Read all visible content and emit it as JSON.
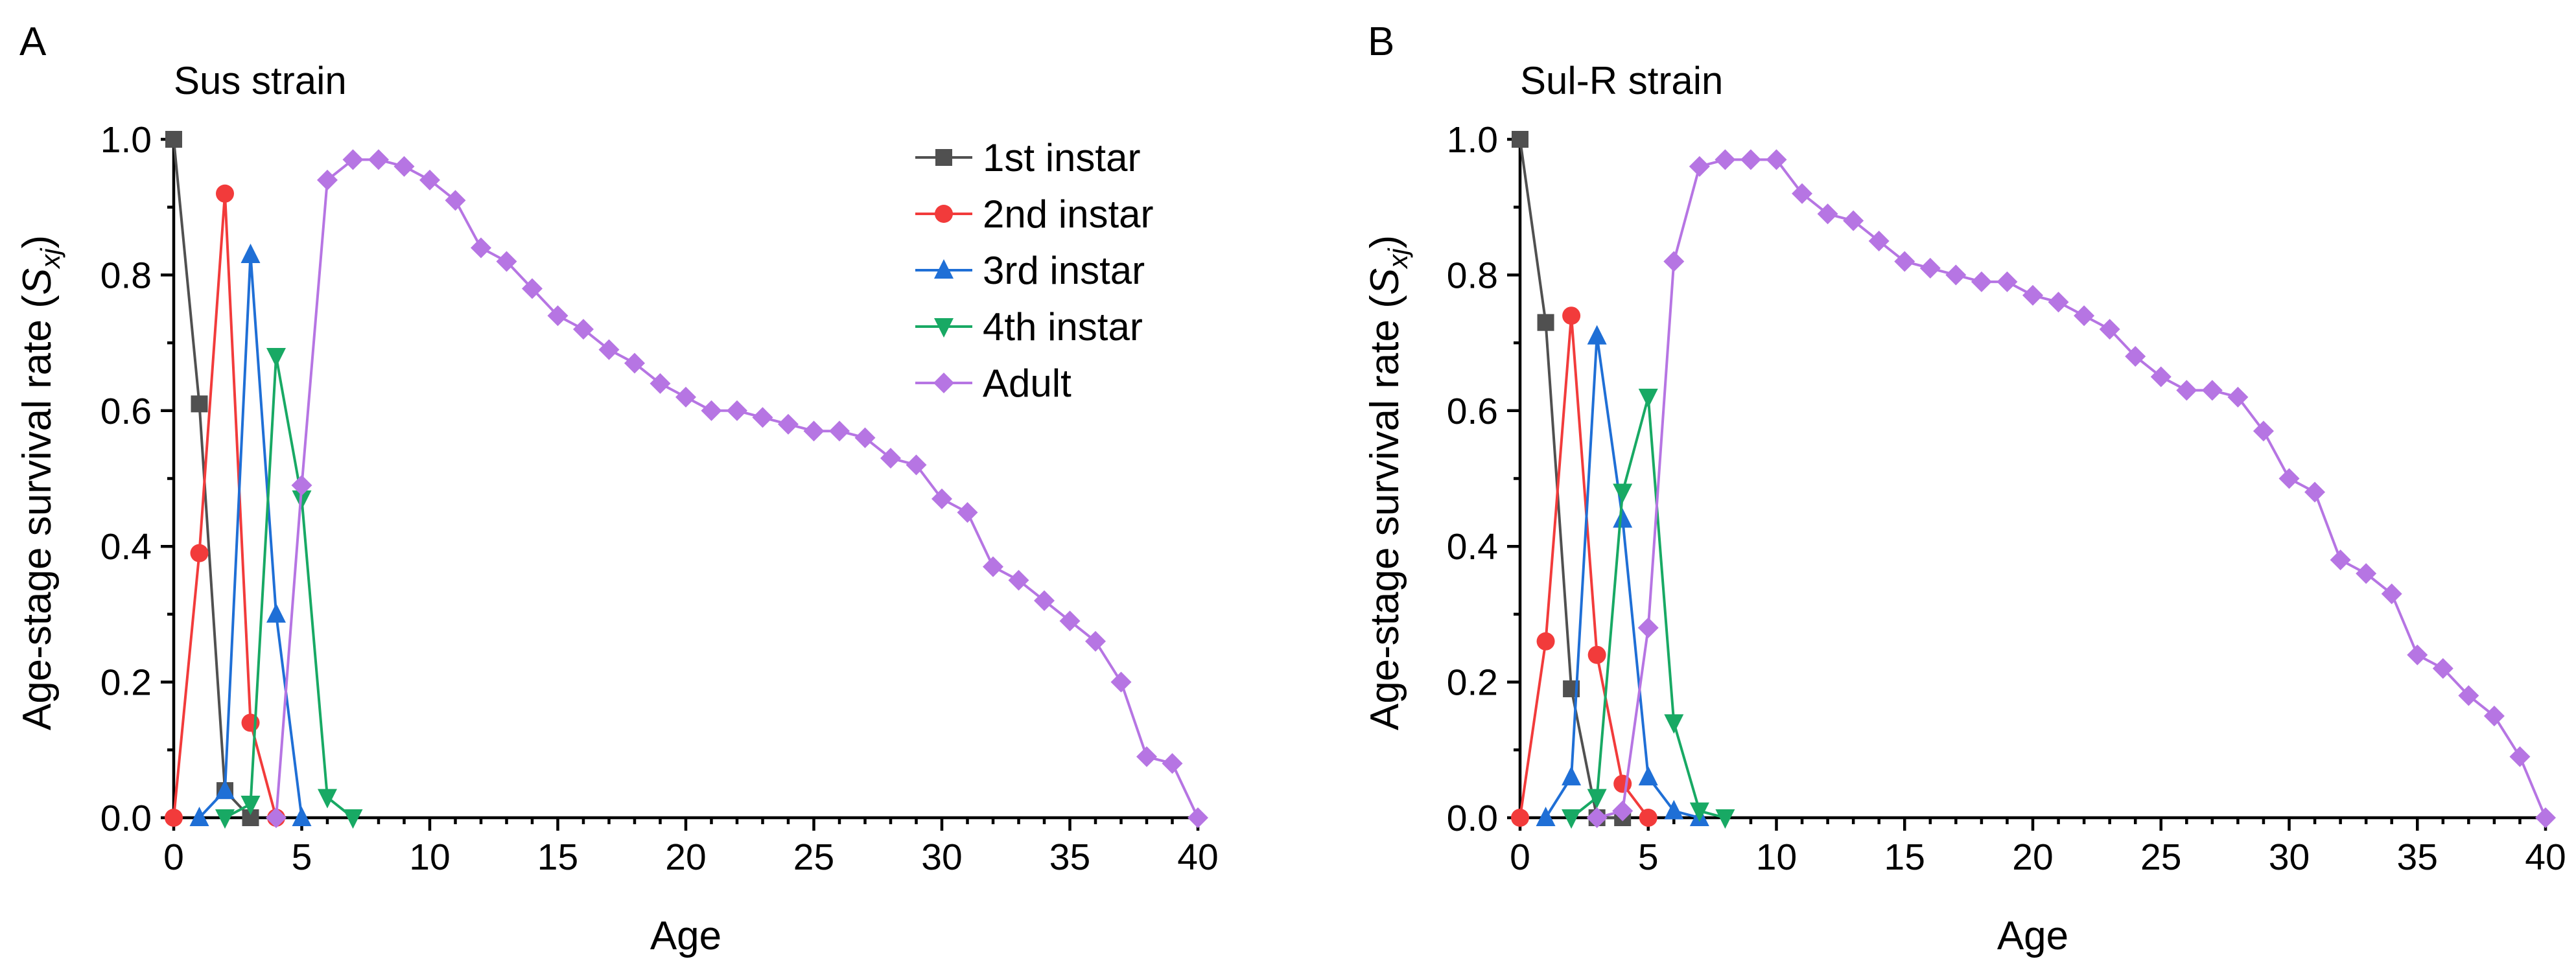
{
  "chart_data": [
    {
      "type": "line",
      "panel_label": "A",
      "title": "Sus strain",
      "xlabel": "Age",
      "ylabel_prefix": "Age-stage survival rate (",
      "ylabel_symbol": "S",
      "ylabel_subscript": "xj",
      "ylabel_suffix": ")",
      "xlim": [
        0,
        40
      ],
      "ylim": [
        0,
        1.0
      ],
      "xticks": [
        0,
        5,
        10,
        15,
        20,
        25,
        30,
        35,
        40
      ],
      "yticks": [
        0.0,
        0.2,
        0.4,
        0.6,
        0.8,
        1.0
      ],
      "ytick_labels": [
        "0.0",
        "0.2",
        "0.4",
        "0.6",
        "0.8",
        "1.0"
      ],
      "legend_location": "top-center",
      "series": [
        {
          "name": "1st instar",
          "color": "#505050",
          "marker": "square",
          "x": [
            0,
            1,
            2,
            3
          ],
          "y": [
            1.0,
            0.61,
            0.04,
            0.0
          ]
        },
        {
          "name": "2nd instar",
          "color": "#f23b3b",
          "marker": "circle",
          "x": [
            0,
            1,
            2,
            3,
            4
          ],
          "y": [
            0.0,
            0.39,
            0.92,
            0.14,
            0.0
          ]
        },
        {
          "name": "3rd instar",
          "color": "#1f6fd6",
          "marker": "triangle-up",
          "x": [
            1,
            2,
            3,
            4,
            5
          ],
          "y": [
            0.0,
            0.04,
            0.83,
            0.3,
            0.0
          ]
        },
        {
          "name": "4th instar",
          "color": "#18a964",
          "marker": "triangle-down",
          "x": [
            2,
            3,
            4,
            5,
            6,
            7
          ],
          "y": [
            0.0,
            0.02,
            0.68,
            0.47,
            0.03,
            0.0
          ]
        },
        {
          "name": "Adult",
          "color": "#b675e3",
          "marker": "diamond",
          "x": [
            4,
            5,
            6,
            7,
            8,
            9,
            10,
            11,
            12,
            13,
            14,
            15,
            16,
            17,
            18,
            19,
            20,
            21,
            22,
            23,
            24,
            25,
            26,
            27,
            28,
            29,
            30,
            31,
            32,
            33,
            34,
            35,
            36,
            37,
            38,
            39,
            40
          ],
          "y": [
            0.0,
            0.49,
            0.94,
            0.97,
            0.97,
            0.96,
            0.94,
            0.91,
            0.84,
            0.82,
            0.78,
            0.74,
            0.72,
            0.69,
            0.67,
            0.64,
            0.62,
            0.6,
            0.6,
            0.59,
            0.58,
            0.57,
            0.57,
            0.56,
            0.53,
            0.52,
            0.47,
            0.45,
            0.37,
            0.35,
            0.32,
            0.29,
            0.26,
            0.2,
            0.09,
            0.08,
            0.0
          ]
        }
      ]
    },
    {
      "type": "line",
      "panel_label": "B",
      "title": "Sul-R strain",
      "xlabel": "Age",
      "ylabel_prefix": "Age-stage survival rate (",
      "ylabel_symbol": "S",
      "ylabel_subscript": "xj",
      "ylabel_suffix": ")",
      "xlim": [
        0,
        40
      ],
      "ylim": [
        0,
        1.0
      ],
      "xticks": [
        0,
        5,
        10,
        15,
        20,
        25,
        30,
        35,
        40
      ],
      "yticks": [
        0.0,
        0.2,
        0.4,
        0.6,
        0.8,
        1.0
      ],
      "ytick_labels": [
        "0.0",
        "0.2",
        "0.4",
        "0.6",
        "0.8",
        "1.0"
      ],
      "series": [
        {
          "name": "1st instar",
          "color": "#505050",
          "marker": "square",
          "x": [
            0,
            1,
            2,
            3,
            4
          ],
          "y": [
            1.0,
            0.73,
            0.19,
            0.0,
            0.0
          ]
        },
        {
          "name": "2nd instar",
          "color": "#f23b3b",
          "marker": "circle",
          "x": [
            0,
            1,
            2,
            3,
            4,
            5
          ],
          "y": [
            0.0,
            0.26,
            0.74,
            0.24,
            0.05,
            0.0
          ]
        },
        {
          "name": "3rd instar",
          "color": "#1f6fd6",
          "marker": "triangle-up",
          "x": [
            1,
            2,
            3,
            4,
            5,
            6,
            7
          ],
          "y": [
            0.0,
            0.06,
            0.71,
            0.44,
            0.06,
            0.01,
            0.0
          ]
        },
        {
          "name": "4th instar",
          "color": "#18a964",
          "marker": "triangle-down",
          "x": [
            2,
            3,
            4,
            5,
            6,
            7,
            8
          ],
          "y": [
            0.0,
            0.03,
            0.48,
            0.62,
            0.14,
            0.01,
            0.0
          ]
        },
        {
          "name": "Adult",
          "color": "#b675e3",
          "marker": "diamond",
          "x": [
            3,
            4,
            5,
            6,
            7,
            8,
            9,
            10,
            11,
            12,
            13,
            14,
            15,
            16,
            17,
            18,
            19,
            20,
            21,
            22,
            23,
            24,
            25,
            26,
            27,
            28,
            29,
            30,
            31,
            32,
            33,
            34,
            35,
            36,
            37,
            38,
            39,
            40
          ],
          "y": [
            0.0,
            0.01,
            0.28,
            0.82,
            0.96,
            0.97,
            0.97,
            0.97,
            0.92,
            0.89,
            0.88,
            0.85,
            0.82,
            0.81,
            0.8,
            0.79,
            0.79,
            0.77,
            0.76,
            0.74,
            0.72,
            0.68,
            0.65,
            0.63,
            0.63,
            0.62,
            0.57,
            0.5,
            0.48,
            0.38,
            0.36,
            0.33,
            0.24,
            0.22,
            0.18,
            0.15,
            0.09,
            0.0
          ]
        }
      ]
    }
  ]
}
